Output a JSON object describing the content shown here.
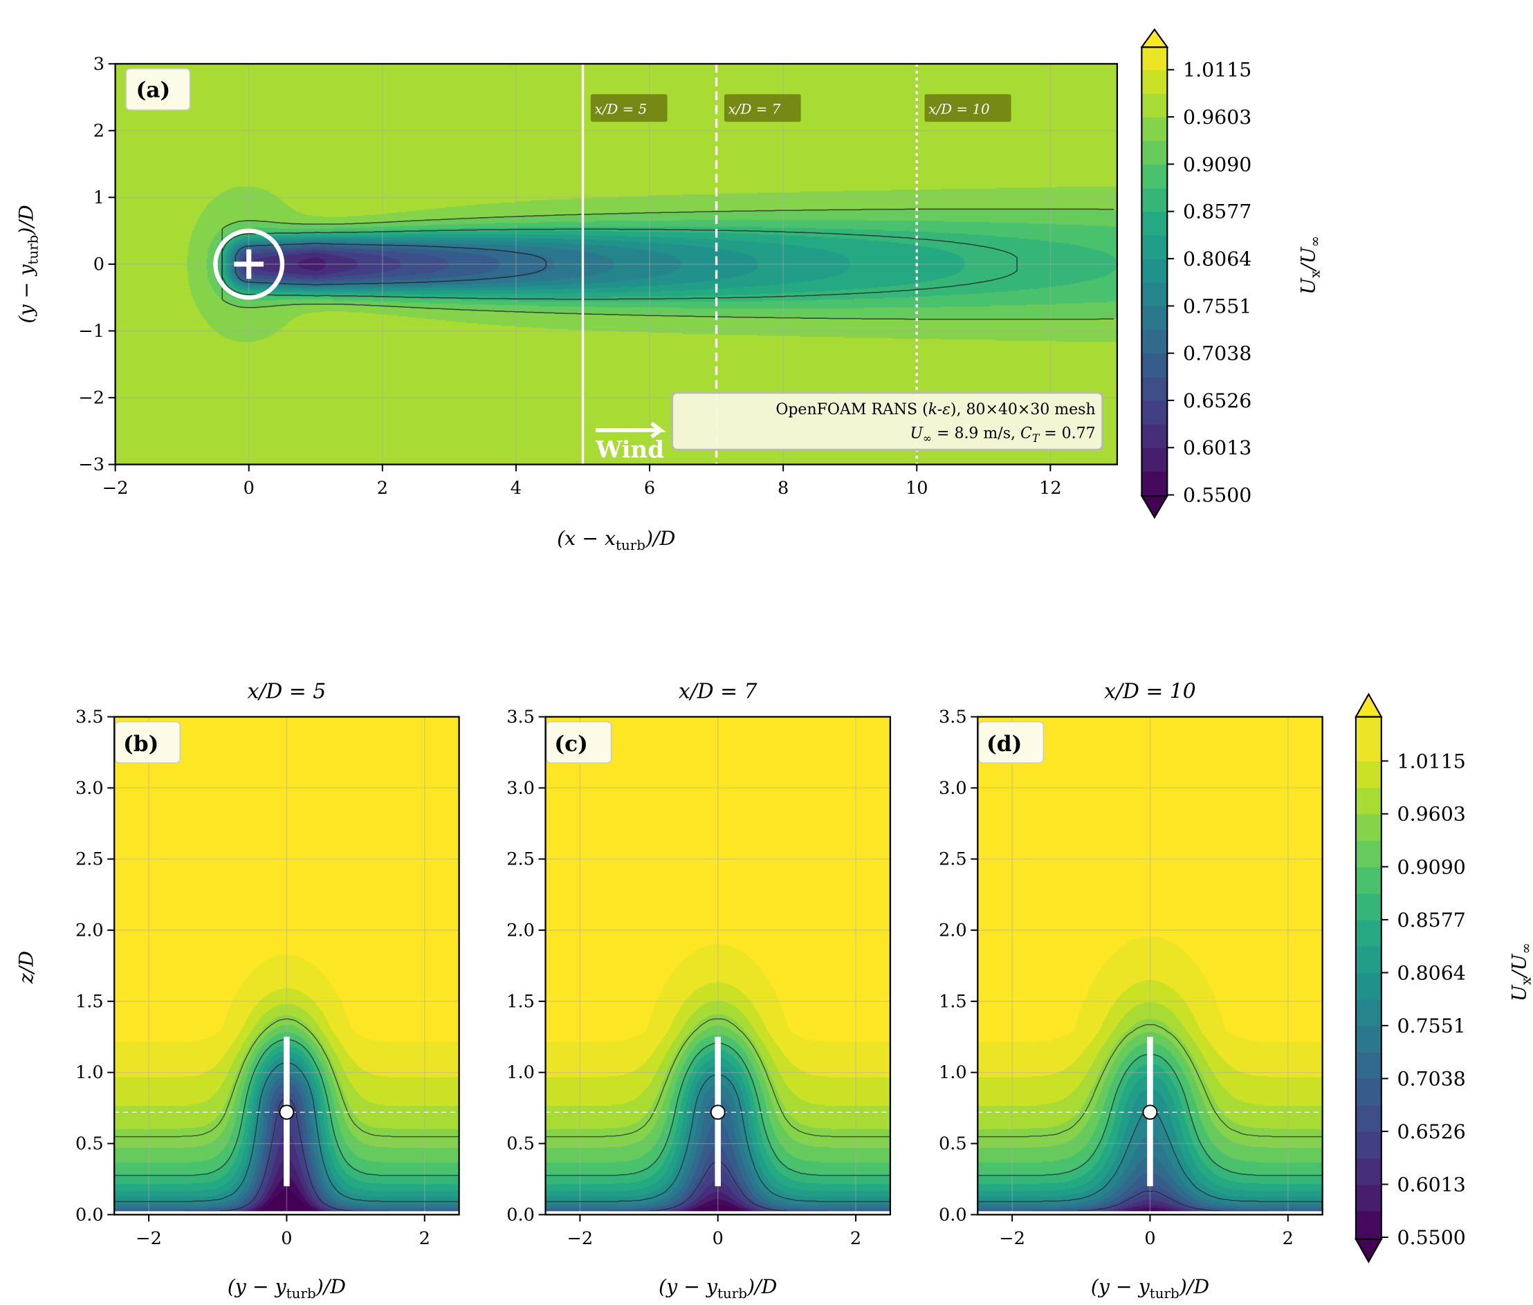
{
  "chart_data": [
    {
      "type": "heatmap",
      "panel": "(a)",
      "xlabel": {
        "pre": "(x − x",
        "sub": "turb",
        "post": ")/D"
      },
      "ylabel": {
        "pre": "(y − y",
        "sub": "turb",
        "post": ")/D"
      },
      "xlim": [
        -2,
        13
      ],
      "ylim": [
        -3,
        3
      ],
      "xticks": [
        -2,
        0,
        2,
        4,
        6,
        8,
        10,
        12
      ],
      "xtick_labels": [
        "−2",
        "0",
        "2",
        "4",
        "6",
        "8",
        "10",
        "12"
      ],
      "yticks": [
        -3,
        -2,
        -1,
        0,
        1,
        2,
        3
      ],
      "ytick_labels": [
        "−3",
        "−2",
        "−1",
        "0",
        "1",
        "2",
        "3"
      ],
      "grid": true,
      "turbine": {
        "x": 0,
        "y": 0
      },
      "slices": [
        {
          "x": 5,
          "label": "x/D = 5",
          "style": "solid"
        },
        {
          "x": 7,
          "label": "x/D = 7",
          "style": "dashed"
        },
        {
          "x": 10,
          "label": "x/D = 10",
          "style": "dotted"
        }
      ],
      "annotation": {
        "line1": [
          "OpenFOAM RANS (",
          "k-ε",
          "), 80×40×30 mesh"
        ],
        "line2": [
          "U",
          "∞",
          " = 8.9 m/s, ",
          "C",
          "T",
          " = 0.77"
        ]
      },
      "wind_label": "Wind",
      "colorbar": {
        "label": {
          "main": "U",
          "sub": "x",
          "mid": "/U",
          "sub2": "∞"
        },
        "ticks": [
          1.0115,
          0.9603,
          0.909,
          0.8577,
          0.8064,
          0.7551,
          0.7038,
          0.6526,
          0.6013,
          0.55
        ],
        "tick_labels": [
          "1.0115",
          "0.9603",
          "0.9090",
          "0.8577",
          "0.8064",
          "0.7551",
          "0.7038",
          "0.6526",
          "0.6013",
          "0.5500"
        ],
        "range": [
          0.55,
          1.0372
        ],
        "extend": "both",
        "colormap": "viridis"
      }
    },
    {
      "type": "heatmap",
      "panel": "(b)",
      "title": "x/D = 5",
      "xlabel": {
        "pre": "(y − y",
        "sub": "turb",
        "post": ")/D"
      },
      "ylabel": "z/D",
      "xlim": [
        -2.5,
        2.5
      ],
      "ylim": [
        0,
        3.5
      ],
      "xticks": [
        -2,
        0,
        2
      ],
      "xtick_labels": [
        "−2",
        "0",
        "2"
      ],
      "yticks": [
        0,
        0.5,
        1,
        1.5,
        2,
        2.5,
        3,
        3.5
      ],
      "ytick_labels": [
        "0.0",
        "0.5",
        "1.0",
        "1.5",
        "2.0",
        "2.5",
        "3.0",
        "3.5"
      ],
      "hub_height": 0.72,
      "rotor_extent": [
        0.2,
        1.25
      ]
    },
    {
      "type": "heatmap",
      "panel": "(c)",
      "title": "x/D = 7",
      "xlabel": {
        "pre": "(y − y",
        "sub": "turb",
        "post": ")/D"
      },
      "xlim": [
        -2.5,
        2.5
      ],
      "ylim": [
        0,
        3.5
      ],
      "xticks": [
        -2,
        0,
        2
      ],
      "xtick_labels": [
        "−2",
        "0",
        "2"
      ],
      "yticks": [
        0,
        0.5,
        1,
        1.5,
        2,
        2.5,
        3,
        3.5
      ],
      "ytick_labels": [
        "0.0",
        "0.5",
        "1.0",
        "1.5",
        "2.0",
        "2.5",
        "3.0",
        "3.5"
      ],
      "hub_height": 0.72,
      "rotor_extent": [
        0.2,
        1.25
      ]
    },
    {
      "type": "heatmap",
      "panel": "(d)",
      "title": "x/D = 10",
      "xlabel": {
        "pre": "(y − y",
        "sub": "turb",
        "post": ")/D"
      },
      "xlim": [
        -2.5,
        2.5
      ],
      "ylim": [
        0,
        3.5
      ],
      "xticks": [
        -2,
        0,
        2
      ],
      "xtick_labels": [
        "−2",
        "0",
        "2"
      ],
      "yticks": [
        0,
        0.5,
        1,
        1.5,
        2,
        2.5,
        3,
        3.5
      ],
      "ytick_labels": [
        "0.0",
        "0.5",
        "1.0",
        "1.5",
        "2.0",
        "2.5",
        "3.0",
        "3.5"
      ],
      "hub_height": 0.72,
      "rotor_extent": [
        0.2,
        1.25
      ],
      "colorbar": {
        "label": {
          "main": "U",
          "sub": "x",
          "mid": "/U",
          "sub2": "∞"
        },
        "ticks": [
          1.0115,
          0.9603,
          0.909,
          0.8577,
          0.8064,
          0.7551,
          0.7038,
          0.6526,
          0.6013,
          0.55
        ],
        "tick_labels": [
          "1.0115",
          "0.9603",
          "0.9090",
          "0.8577",
          "0.8064",
          "0.7551",
          "0.7038",
          "0.6526",
          "0.6013",
          "0.5500"
        ],
        "range": [
          0.55,
          1.0372
        ],
        "extend": "both",
        "colormap": "viridis"
      }
    }
  ]
}
